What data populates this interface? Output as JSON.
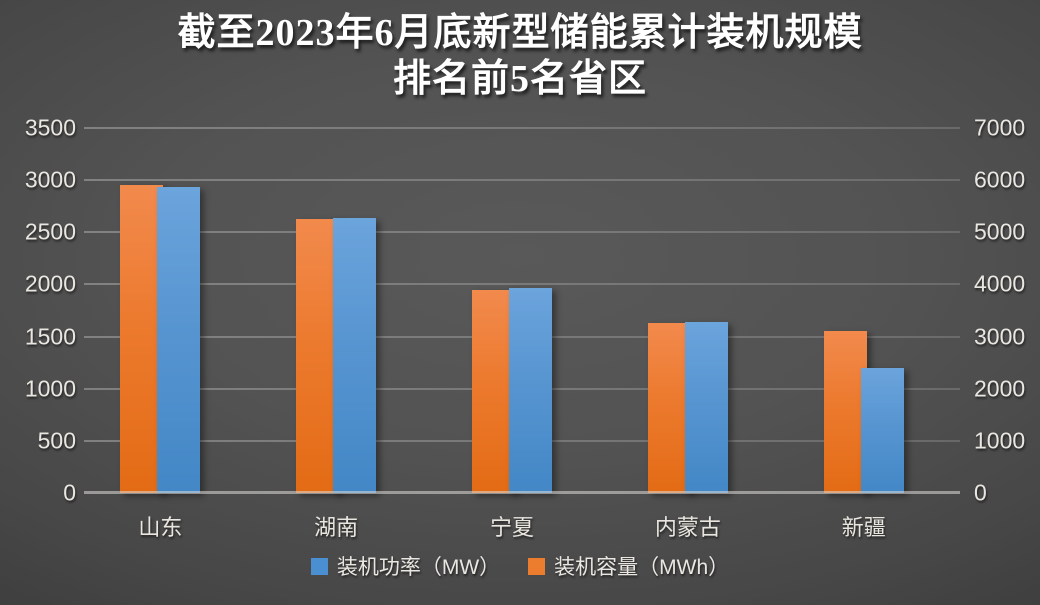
{
  "title": {
    "line1": "截至2023年6月底新型储能累计装机规模",
    "line2": "排名前5名省区"
  },
  "chart_data": {
    "type": "bar",
    "title": "截至2023年6月底新型储能累计装机规模 排名前5名省区",
    "categories": [
      "山东",
      "湖南",
      "宁夏",
      "内蒙古",
      "新疆"
    ],
    "series": [
      {
        "name": "装机容量（MWh）",
        "axis": "right",
        "color": "#EC7C2E",
        "values": [
          5910,
          5250,
          3890,
          3270,
          3110
        ]
      },
      {
        "name": "装机功率（MW）",
        "axis": "left",
        "color": "#4A8FD2",
        "values": [
          2930,
          2640,
          1970,
          1640,
          1200
        ]
      }
    ],
    "left_axis": {
      "min": 0,
      "max": 3500,
      "ticks": [
        "3500",
        "3000",
        "2500",
        "2000",
        "1500",
        "1000",
        "500",
        "0"
      ]
    },
    "right_axis": {
      "min": 0,
      "max": 7000,
      "ticks": [
        "7000",
        "6000",
        "5000",
        "4000",
        "3000",
        "2000",
        "1000",
        "0"
      ]
    },
    "legend": [
      {
        "label": "装机功率（MW）",
        "color": "#4A8FD2"
      },
      {
        "label": "装机容量（MWh）",
        "color": "#EC7C2E"
      }
    ],
    "grid": true,
    "legend_position": "bottom",
    "gridline_color": "#6F6F6F",
    "axis_text_color": "#EAE7E2",
    "background_center": "#565656",
    "background_edge": "#262626"
  }
}
